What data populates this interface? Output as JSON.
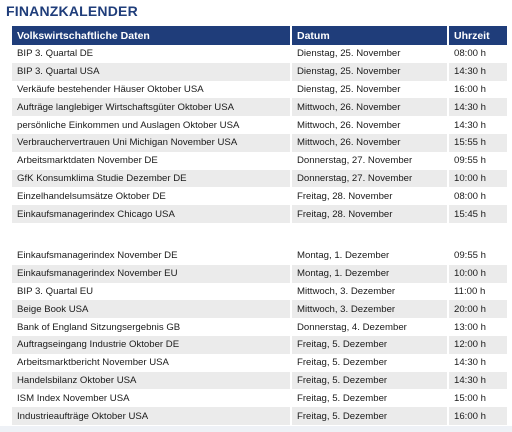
{
  "title": "FINANZKALENDER",
  "columns": [
    "Volkswirtschaftliche Daten",
    "Datum",
    "Uhrzeit"
  ],
  "group1": [
    [
      "BIP 3. Quartal DE",
      "Dienstag, 25. November",
      "08:00 h"
    ],
    [
      "BIP 3. Quartal USA",
      "Dienstag, 25. November",
      "14:30 h"
    ],
    [
      "Verkäufe bestehender Häuser Oktober USA",
      "Dienstag, 25. November",
      "16:00 h"
    ],
    [
      "Aufträge langlebiger Wirtschaftsgüter Oktober USA",
      "Mittwoch, 26. November",
      "14:30 h"
    ],
    [
      "persönliche Einkommen und Auslagen Oktober USA",
      "Mittwoch, 26. November",
      "14:30 h"
    ],
    [
      "Verbrauchervertrauen Uni Michigan November USA",
      "Mittwoch, 26. November",
      "15:55 h"
    ],
    [
      "Arbeitsmarktdaten November DE",
      "Donnerstag, 27. November",
      "09:55 h"
    ],
    [
      "GfK Konsumklima Studie Dezember DE",
      "Donnerstag, 27. November",
      "10:00 h"
    ],
    [
      "Einzelhandelsumsätze Oktober DE",
      "Freitag, 28. November",
      "08:00 h"
    ],
    [
      "Einkaufsmanagerindex Chicago USA",
      "Freitag, 28. November",
      "15:45 h"
    ]
  ],
  "group2": [
    [
      "Einkaufsmanagerindex November DE",
      "Montag, 1. Dezember",
      "09:55 h"
    ],
    [
      "Einkaufsmanagerindex November EU",
      "Montag, 1. Dezember",
      "10:00 h"
    ],
    [
      "BIP 3. Quartal EU",
      "Mittwoch, 3. Dezember",
      "11:00 h"
    ],
    [
      "Beige Book USA",
      "Mittwoch, 3. Dezember",
      "20:00 h"
    ],
    [
      "Bank of England Sitzungsergebnis GB",
      "Donnerstag, 4. Dezember",
      "13:00 h"
    ],
    [
      "Auftragseingang Industrie Oktober DE",
      "Freitag, 5. Dezember",
      "12:00 h"
    ],
    [
      "Arbeitsmarktbericht November USA",
      "Freitag, 5. Dezember",
      "14:30 h"
    ],
    [
      "Handelsbilanz Oktober USA",
      "Freitag, 5. Dezember",
      "14:30 h"
    ],
    [
      "ISM Index November USA",
      "Freitag, 5. Dezember",
      "15:00 h"
    ],
    [
      "Industrieaufträge Oktober USA",
      "Freitag, 5. Dezember",
      "16:00 h"
    ]
  ]
}
